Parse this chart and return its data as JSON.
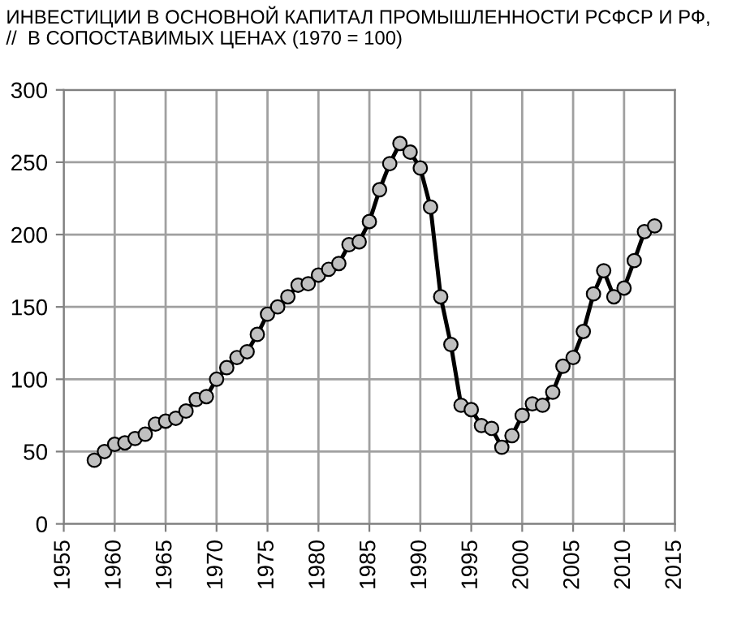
{
  "chart_data": {
    "type": "line",
    "title": "ИНВЕСТИЦИИ В ОСНОВНОЙ КАПИТАЛ ПРОМЫШЛЕННОСТИ РСФСР И РФ,\n//  В СОПОСТАВИМЫХ ЦЕНАХ (1970 = 100)",
    "x": [
      1958,
      1959,
      1960,
      1961,
      1962,
      1963,
      1964,
      1965,
      1966,
      1967,
      1968,
      1969,
      1970,
      1971,
      1972,
      1973,
      1974,
      1975,
      1976,
      1977,
      1978,
      1979,
      1980,
      1981,
      1982,
      1983,
      1984,
      1985,
      1986,
      1987,
      1988,
      1989,
      1990,
      1991,
      1992,
      1993,
      1994,
      1995,
      1996,
      1997,
      1998,
      1999,
      2000,
      2001,
      2002,
      2003,
      2004,
      2005,
      2006,
      2007,
      2008,
      2009,
      2010,
      2011,
      2012,
      2013
    ],
    "series": [
      {
        "color": "#000000",
        "values": [
          44,
          50,
          55,
          56,
          59,
          62,
          69,
          71,
          73,
          78,
          86,
          88,
          100,
          108,
          115,
          119,
          131,
          145,
          150,
          157,
          165,
          166,
          172,
          176,
          180,
          193,
          195,
          209,
          231,
          249,
          263,
          257,
          246,
          219,
          157,
          124,
          82,
          79,
          68,
          66,
          53,
          61,
          75,
          83,
          82,
          91,
          109,
          115,
          133,
          159,
          175,
          157,
          163,
          182,
          202,
          206
        ]
      }
    ],
    "xlim": [
      1955,
      2015
    ],
    "xticks": [
      1955,
      1960,
      1965,
      1970,
      1975,
      1980,
      1985,
      1990,
      1995,
      2000,
      2005,
      2010,
      2015
    ],
    "ylim": [
      0,
      300
    ],
    "yticks": [
      0,
      50,
      100,
      150,
      200,
      250,
      300
    ],
    "grid": true,
    "marker": "circle",
    "line_style": "solid"
  }
}
